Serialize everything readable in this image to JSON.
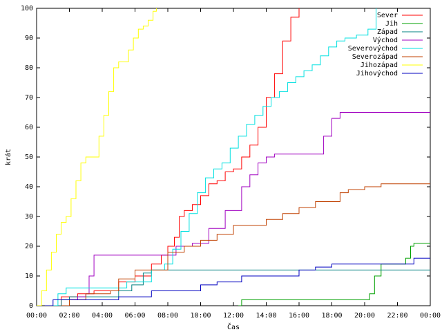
{
  "chart_data": {
    "type": "line",
    "xlabel": "Čas",
    "ylabel": "krát",
    "xlim": [
      0,
      24
    ],
    "ylim": [
      0,
      100
    ],
    "grid": false,
    "legend_position": "top-right",
    "x_tick_labels": [
      "00:00",
      "02:00",
      "04:00",
      "06:00",
      "08:00",
      "10:00",
      "12:00",
      "14:00",
      "16:00",
      "18:00",
      "20:00",
      "22:00",
      "00:00"
    ],
    "y_tick_labels": [
      "0",
      "10",
      "20",
      "30",
      "40",
      "50",
      "60",
      "70",
      "80",
      "90",
      "100"
    ],
    "series": [
      {
        "name": "Sever",
        "color": "#ff0000",
        "x": [
          0.8,
          1.5,
          2.5,
          3.5,
          5.0,
          6.0,
          7.0,
          7.6,
          8.0,
          8.4,
          8.7,
          9.0,
          9.5,
          10.0,
          10.5,
          11.0,
          11.5,
          12.0,
          12.5,
          13.0,
          13.5,
          14.0,
          14.5,
          15.0,
          15.5,
          16.0
        ],
        "y": [
          0,
          3,
          4,
          5,
          8,
          10,
          14,
          17,
          20,
          23,
          30,
          32,
          34,
          37,
          41,
          42,
          45,
          46,
          50,
          54,
          60,
          70,
          78,
          89,
          97,
          100
        ]
      },
      {
        "name": "Jih",
        "color": "#00a000",
        "x": [
          12.3,
          12.5,
          20.0,
          20.3,
          20.6,
          21.0,
          22.0,
          22.5,
          22.8,
          23.0,
          24.0
        ],
        "y": [
          0,
          2,
          2,
          4,
          10,
          14,
          14,
          16,
          20,
          21,
          21
        ]
      },
      {
        "name": "Západ",
        "color": "#008080",
        "x": [
          1.2,
          1.5,
          2.0,
          4.0,
          5.0,
          5.8,
          6.5,
          7.0,
          24.0
        ],
        "y": [
          0,
          2,
          3,
          3,
          5,
          7,
          11,
          12,
          12
        ]
      },
      {
        "name": "Východ",
        "color": "#a000c0",
        "x": [
          1.5,
          2.0,
          2.5,
          3.0,
          3.2,
          3.5,
          7.5,
          8.5,
          9.5,
          10.5,
          11.5,
          12.5,
          13.0,
          13.5,
          14.0,
          14.5,
          17.0,
          17.5,
          18.0,
          18.5,
          24.0
        ],
        "y": [
          0,
          2,
          3,
          4,
          10,
          17,
          17,
          20,
          21,
          26,
          32,
          40,
          44,
          48,
          50,
          51,
          51,
          57,
          63,
          65,
          65
        ]
      },
      {
        "name": "Severovýchod",
        "color": "#00e0e0",
        "x": [
          0.8,
          1.3,
          1.8,
          4.5,
          5.5,
          7.0,
          7.8,
          8.3,
          8.8,
          9.3,
          9.8,
          10.3,
          10.8,
          11.3,
          11.8,
          12.3,
          12.8,
          13.3,
          13.8,
          14.3,
          14.8,
          15.3,
          15.8,
          16.3,
          16.8,
          17.3,
          17.8,
          18.3,
          18.8,
          19.5,
          20.2,
          20.7
        ],
        "y": [
          0,
          4,
          6,
          6,
          8,
          12,
          14,
          19,
          25,
          31,
          38,
          43,
          46,
          48,
          53,
          57,
          61,
          64,
          67,
          70,
          72,
          75,
          77,
          79,
          81,
          84,
          87,
          89,
          90,
          91,
          93,
          100
        ]
      },
      {
        "name": "Severozápad",
        "color": "#c04000",
        "x": [
          1.5,
          2.0,
          3.0,
          4.5,
          5.0,
          6.0,
          7.0,
          8.0,
          9.0,
          10.0,
          11.0,
          12.0,
          13.0,
          14.0,
          15.0,
          16.0,
          17.0,
          18.0,
          18.5,
          19.0,
          20.0,
          21.0,
          24.0
        ],
        "y": [
          0,
          2,
          4,
          5,
          9,
          12,
          12,
          18,
          20,
          22,
          24,
          27,
          27,
          29,
          31,
          33,
          35,
          35,
          38,
          39,
          40,
          41,
          41
        ]
      },
      {
        "name": "Jihozápad",
        "color": "#ffff00",
        "x": [
          0.0,
          0.3,
          0.6,
          0.9,
          1.2,
          1.5,
          1.8,
          2.1,
          2.4,
          2.7,
          3.0,
          3.5,
          3.8,
          4.1,
          4.4,
          4.7,
          5.0,
          5.3,
          5.6,
          5.9,
          6.2,
          6.5,
          6.8,
          7.1,
          7.3
        ],
        "y": [
          0,
          5,
          12,
          18,
          24,
          28,
          30,
          36,
          42,
          48,
          50,
          50,
          57,
          64,
          72,
          80,
          82,
          82,
          86,
          90,
          93,
          94,
          96,
          99,
          100
        ]
      },
      {
        "name": "Jihovýchod",
        "color": "#0000c0",
        "x": [
          0.5,
          1.0,
          5.0,
          7.0,
          9.0,
          10.0,
          11.0,
          12.5,
          14.0,
          16.0,
          17.0,
          18.0,
          20.0,
          22.0,
          23.0,
          24.0
        ],
        "y": [
          0,
          2,
          3,
          5,
          5,
          7,
          8,
          10,
          10,
          12,
          13,
          14,
          14,
          14,
          16,
          16
        ]
      }
    ]
  }
}
